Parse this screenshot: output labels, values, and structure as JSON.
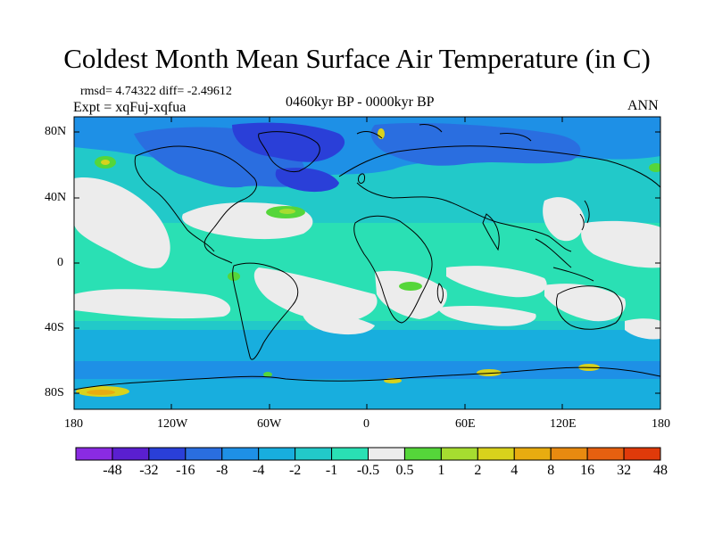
{
  "title": "Coldest Month Mean Surface Air Temperature (in C)",
  "stats": "rmsd= 4.74322 diff= -2.49612",
  "experiment": "Expt = xqFuj-xqfua",
  "period": "0460kyr BP - 0000kyr BP",
  "season": "ANN",
  "lat_ticks": [
    "80N",
    "40N",
    "0",
    "40S",
    "80S"
  ],
  "lon_ticks": [
    "180",
    "120W",
    "60W",
    "0",
    "60E",
    "120E",
    "180"
  ],
  "colorbar": {
    "labels": [
      "-48",
      "-32",
      "-16",
      "-8",
      "-4",
      "-2",
      "-1",
      "-0.5",
      "0.5",
      "1",
      "2",
      "4",
      "8",
      "16",
      "32",
      "48"
    ],
    "colors": [
      "#8a2be2",
      "#5a1fd0",
      "#2a3fd8",
      "#2a6ee0",
      "#1e90e6",
      "#18aede",
      "#22c9c9",
      "#2ae0b4",
      "#ececec",
      "#55d63a",
      "#a6dd30",
      "#d8d21c",
      "#e8ac10",
      "#e88a10",
      "#e66010",
      "#e03a0a"
    ]
  },
  "map_colors": {
    "ocean_mid": "#22c9c9",
    "ocean_light": "#2ae0b4",
    "neutral": "#ececec",
    "cold_mid": "#18aede",
    "cold": "#1e90e6",
    "colder": "#2a6ee0",
    "coldest": "#2a3fd8",
    "warm_green": "#55d63a",
    "warm_yellow": "#d8d21c",
    "warm_orange": "#e8ac10"
  }
}
